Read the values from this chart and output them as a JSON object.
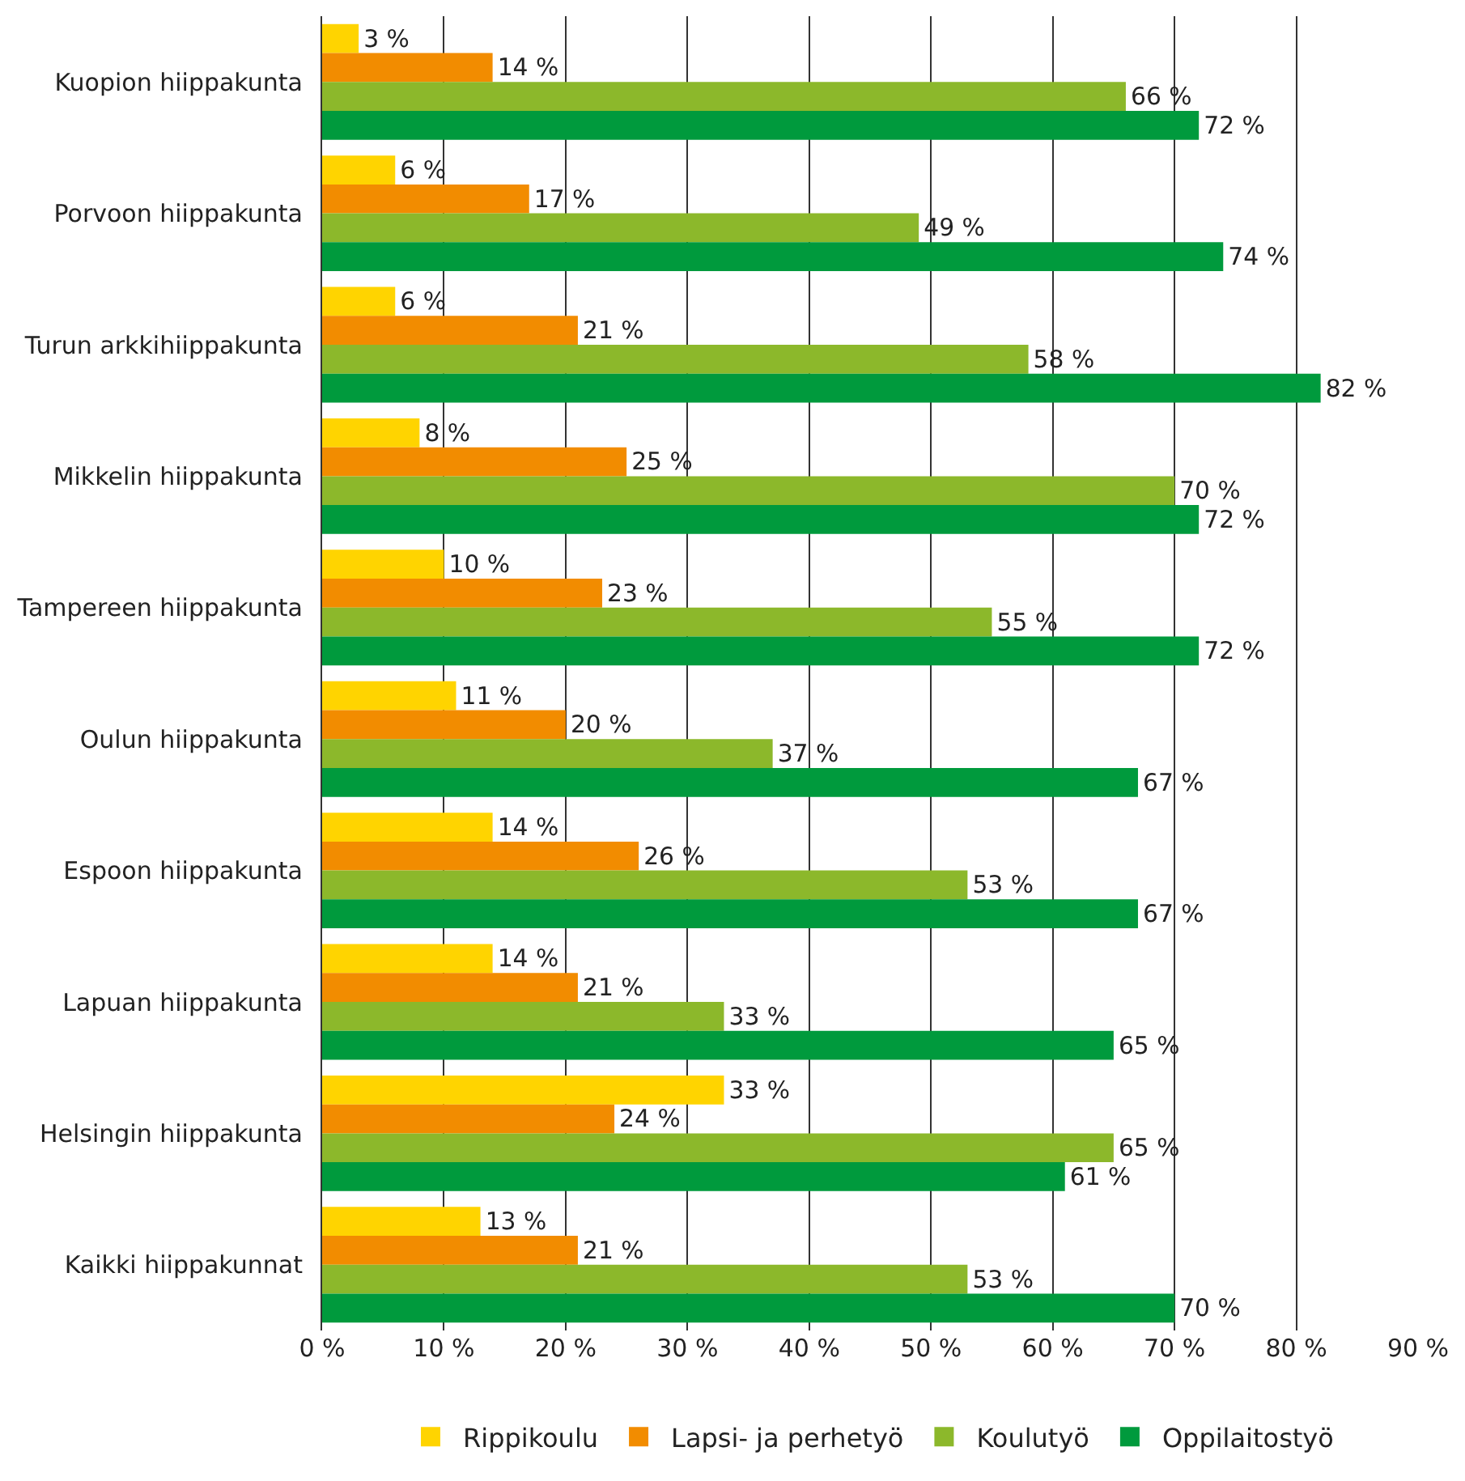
{
  "chart_data": {
    "type": "bar",
    "orientation": "horizontal",
    "categories": [
      "Kuopion hiippakunta",
      "Porvoon hiippakunta",
      "Turun arkkihiippakunta",
      "Mikkelin hiippakunta",
      "Tampereen hiippakunta",
      "Oulun hiippakunta",
      "Espoon hiippakunta",
      "Lapuan hiippakunta",
      "Helsingin hiippakunta",
      "Kaikki hiippakunnat"
    ],
    "series": [
      {
        "name": "Rippikoulu",
        "color": "#ffd400",
        "values": [
          3,
          6,
          6,
          8,
          10,
          11,
          14,
          14,
          33,
          13
        ],
        "value_labels": [
          "3 %",
          "6 %",
          "6 %",
          "8 %",
          "10 %",
          "11 %",
          "14 %",
          "14 %",
          "33 %",
          "13 %"
        ]
      },
      {
        "name": "Lapsi- ja perhetyö",
        "color": "#f28c00",
        "values": [
          14,
          17,
          21,
          25,
          23,
          20,
          26,
          21,
          24,
          21
        ],
        "value_labels": [
          "14 %",
          "17 %",
          "21 %",
          "25 %",
          "23 %",
          "20 %",
          "26 %",
          "21 %",
          "24 %",
          "21 %"
        ]
      },
      {
        "name": "Koulutyö",
        "color": "#8cb82b",
        "values": [
          66,
          49,
          58,
          70,
          55,
          37,
          53,
          33,
          65,
          53
        ],
        "value_labels": [
          "66 %",
          "49 %",
          "58 %",
          "70 %",
          "55 %",
          "37 %",
          "53 %",
          "33 %",
          "65 %",
          "53 %"
        ]
      },
      {
        "name": "Oppilaitostyö",
        "color": "#009a3d",
        "values": [
          72,
          74,
          82,
          72,
          72,
          67,
          67,
          65,
          61,
          70
        ],
        "value_labels": [
          "72 %",
          "74 %",
          "82 %",
          "72 %",
          "72 %",
          "67 %",
          "67 %",
          "65 %",
          "61 %",
          "70 %"
        ]
      }
    ],
    "xlim": [
      0,
      90
    ],
    "xticks": [
      {
        "value": 0,
        "label": "0 %"
      },
      {
        "value": 10,
        "label": "10 %"
      },
      {
        "value": 20,
        "label": "20 %"
      },
      {
        "value": 30,
        "label": "30 %"
      },
      {
        "value": 40,
        "label": "40 %"
      },
      {
        "value": 50,
        "label": "50 %"
      },
      {
        "value": 60,
        "label": "60 %"
      },
      {
        "value": 70,
        "label": "70 %"
      },
      {
        "value": 80,
        "label": "80 %"
      },
      {
        "value": 90,
        "label": "90 %"
      }
    ],
    "grid": "x",
    "legend": "bottom"
  }
}
